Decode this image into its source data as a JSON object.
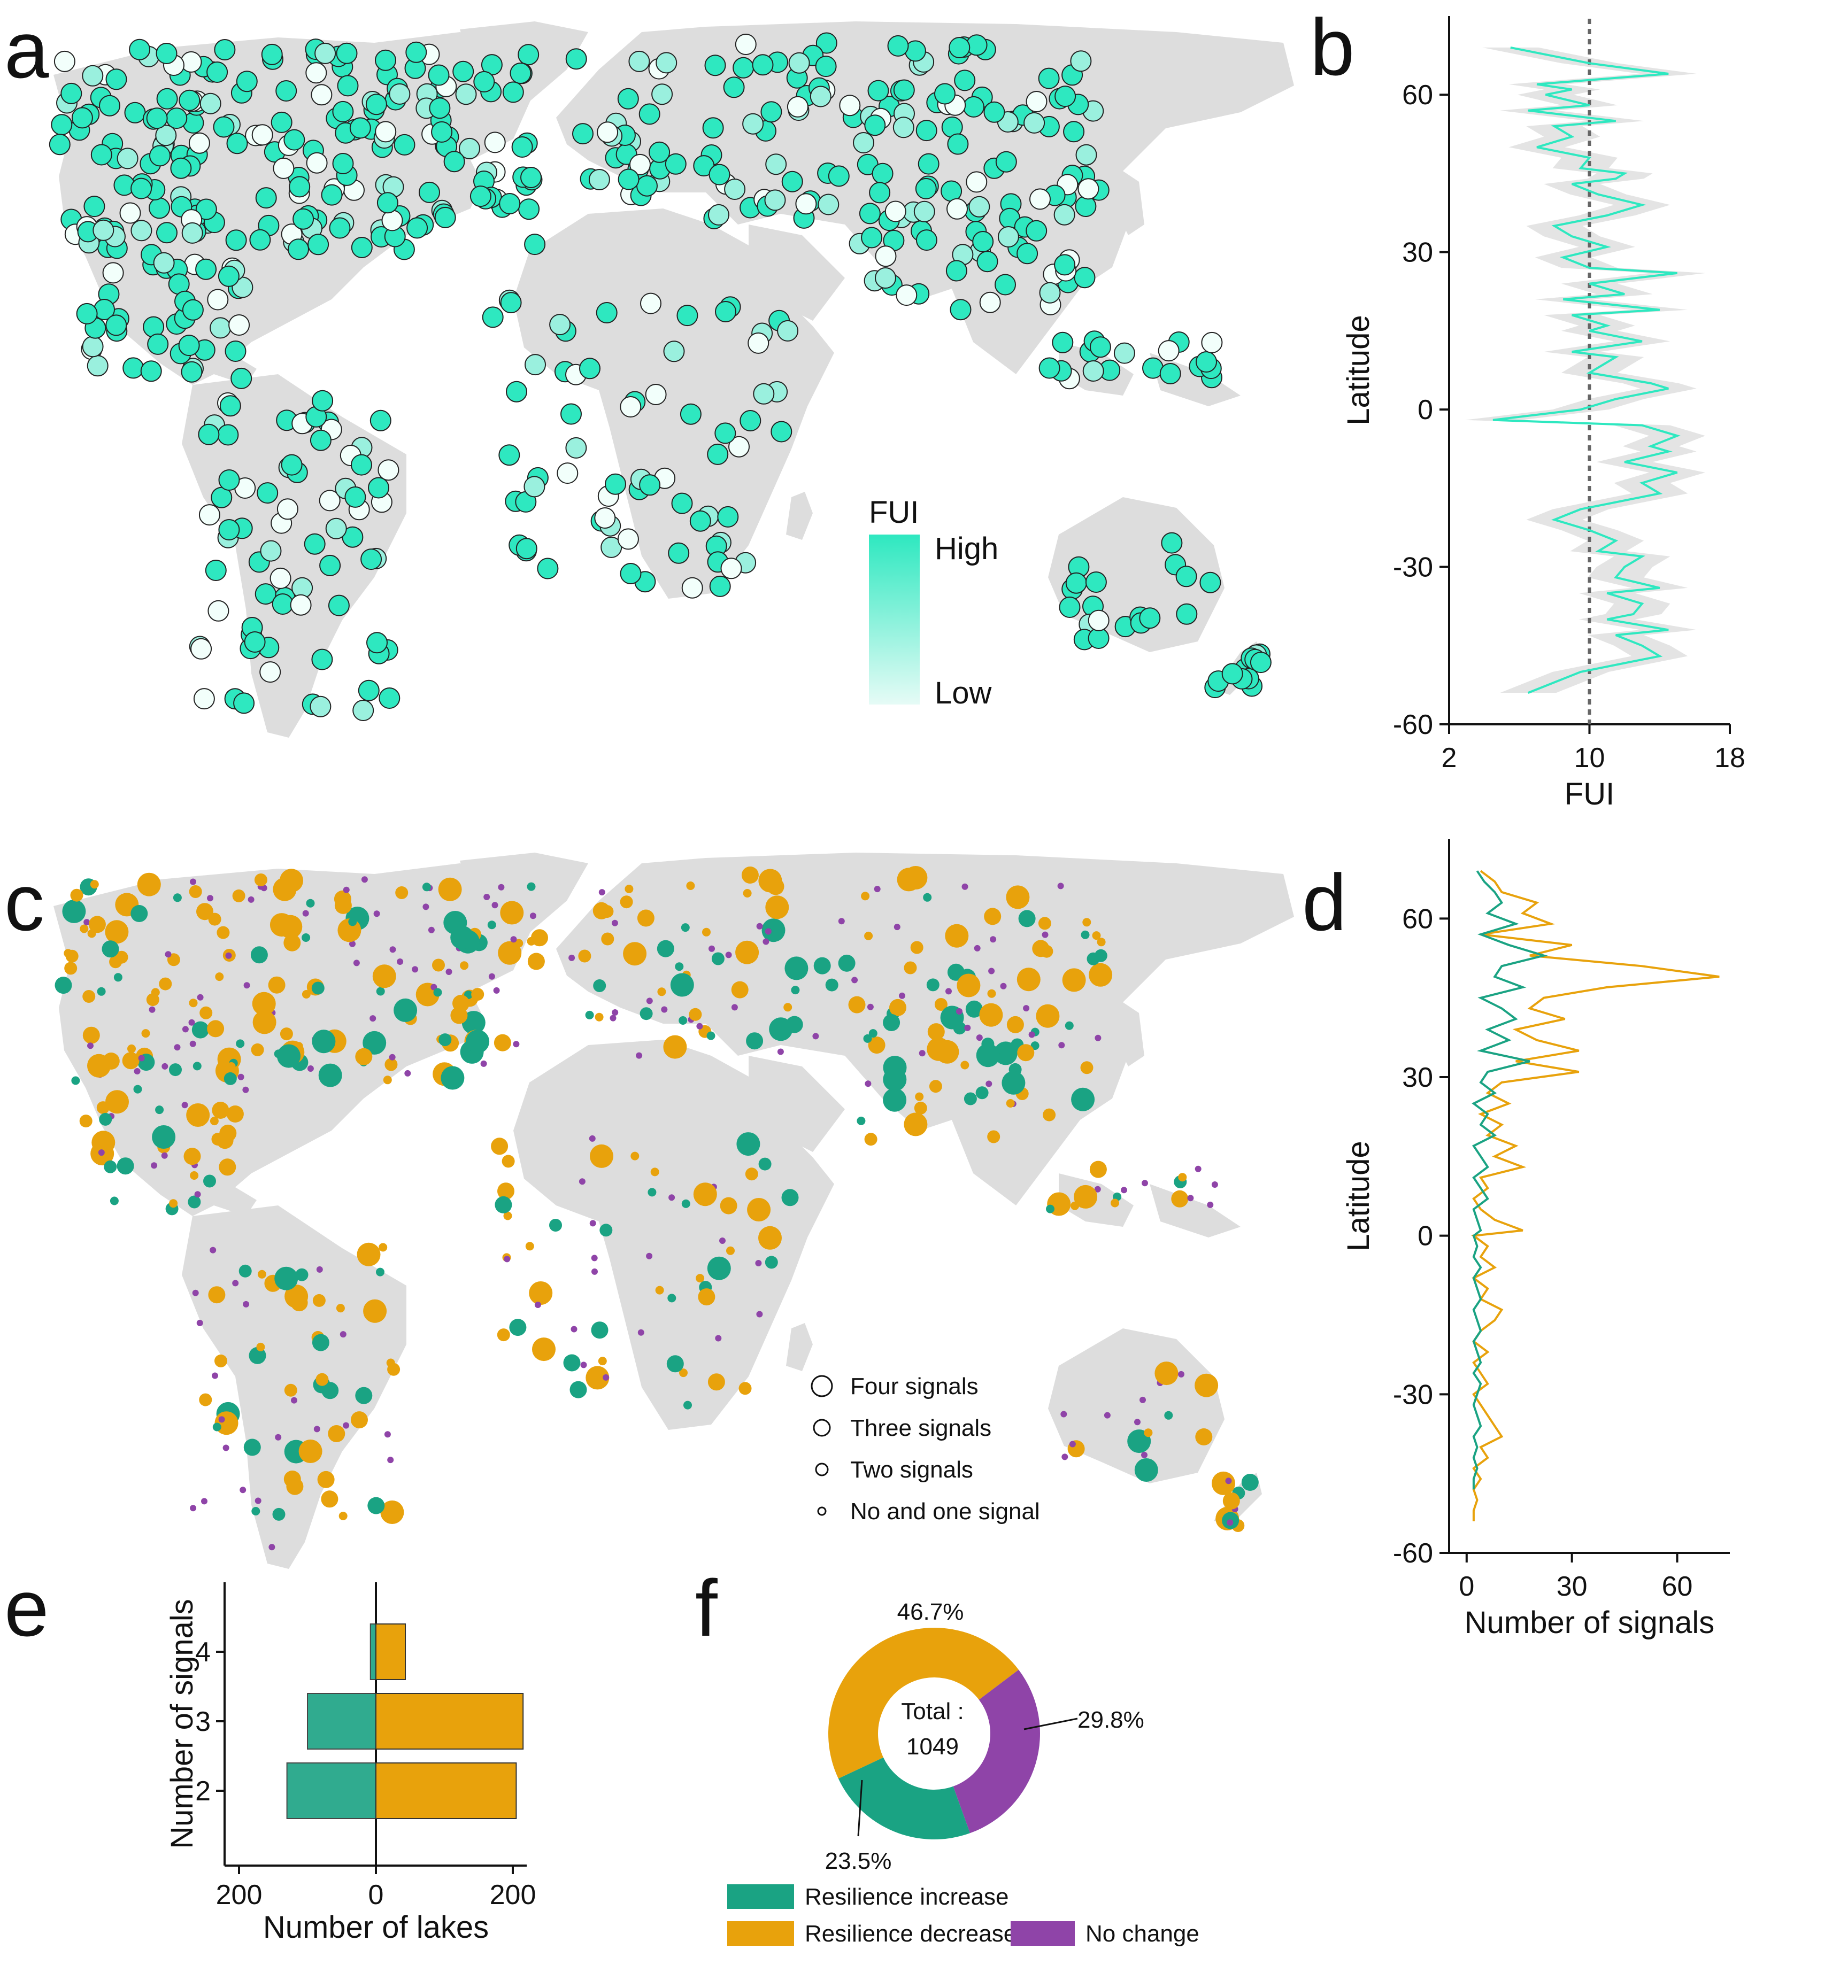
{
  "panels": {
    "a": "a",
    "b": "b",
    "c": "c",
    "d": "d",
    "e": "e",
    "f": "f"
  },
  "colors": {
    "land": "#dddddd",
    "fui_high": "#2ee8c0",
    "fui_low": "#e6fbf6",
    "resilience_increase": "#1aa383",
    "resilience_decrease": "#e8a20c",
    "no_change": "#8f44a8",
    "line_b": "#2ee8c0",
    "band_b": "#d9d9d9"
  },
  "map_a_legend": {
    "title": "FUI",
    "high": "High",
    "low": "Low"
  },
  "map_c_legend": {
    "items": [
      "Four signals",
      "Three signals",
      "Two signals",
      "No and one signal"
    ]
  },
  "chart_data": [
    {
      "panel": "b",
      "type": "line",
      "xlabel": "FUI",
      "ylabel": "Latitude",
      "xlim": [
        2,
        18
      ],
      "ylim": [
        -60,
        75
      ],
      "xticks": [
        "2",
        "10",
        "18"
      ],
      "yticks": [
        "60",
        "30",
        "0",
        "-30",
        "-60"
      ],
      "reference_line_x": 10,
      "series": [
        {
          "lat": [
            69,
            66,
            64,
            62,
            61,
            60,
            58,
            57,
            55,
            54,
            52,
            50,
            48,
            46,
            45,
            44,
            43,
            41,
            39,
            37,
            35,
            33,
            31,
            29,
            27,
            26,
            24,
            22,
            21,
            19,
            18,
            16,
            15,
            13,
            11,
            10,
            8,
            7,
            5,
            4,
            2,
            0,
            -2,
            -3,
            -5,
            -7,
            -8,
            -10,
            -12,
            -14,
            -16,
            -18,
            -19,
            -21,
            -23,
            -25,
            -27,
            -28,
            -30,
            -32,
            -34,
            -35,
            -37,
            -39,
            -40,
            -42,
            -43,
            -45,
            -47,
            -48,
            -50,
            -52,
            -54
          ],
          "fui": [
            5.5,
            10,
            14.5,
            7,
            9,
            7.5,
            10,
            6.5,
            11.5,
            8,
            9,
            7,
            10,
            9.5,
            12,
            11.5,
            9,
            10.5,
            13,
            11,
            8,
            9,
            11,
            8.5,
            10,
            15,
            10,
            12,
            8.5,
            14,
            9,
            11,
            10,
            13,
            9,
            11.5,
            10.5,
            10,
            13.5,
            14.5,
            11.5,
            9.5,
            4.5,
            13,
            15,
            13.5,
            14.5,
            12,
            15,
            13,
            14,
            11,
            9.5,
            8,
            10,
            11.5,
            10.5,
            13,
            12,
            11.5,
            14,
            11,
            13,
            12.5,
            11,
            14.5,
            11.5,
            13,
            14,
            12.5,
            9.5,
            8,
            6.5
          ]
        }
      ]
    },
    {
      "panel": "d",
      "type": "line",
      "xlabel": "Number of signals",
      "ylabel": "Latitude",
      "xlim": [
        -5,
        75
      ],
      "ylim": [
        -60,
        75
      ],
      "xticks": [
        "0",
        "30",
        "60"
      ],
      "yticks": [
        "60",
        "30",
        "0",
        "-30",
        "-60"
      ],
      "series": [
        {
          "name": "Resilience decrease",
          "lat": [
            69,
            67,
            65,
            63,
            61,
            59,
            57,
            55,
            53,
            51,
            49,
            47,
            45,
            43,
            41,
            39,
            37,
            35,
            33,
            31,
            29,
            27,
            25,
            23,
            21,
            19,
            17,
            15,
            13,
            11,
            9,
            7,
            5,
            3,
            1,
            0,
            -2,
            -4,
            -6,
            -8,
            -10,
            -12,
            -14,
            -16,
            -18,
            -20,
            -22,
            -24,
            -26,
            -28,
            -30,
            -32,
            -34,
            -36,
            -38,
            -40,
            -42,
            -44,
            -46,
            -48,
            -50,
            -52,
            -54
          ],
          "values": [
            4,
            8,
            10,
            20,
            16,
            24,
            4,
            30,
            18,
            50,
            72,
            40,
            22,
            18,
            28,
            14,
            20,
            32,
            14,
            32,
            10,
            6,
            12,
            4,
            10,
            6,
            14,
            8,
            16,
            4,
            6,
            2,
            4,
            8,
            16,
            2,
            6,
            4,
            8,
            2,
            6,
            4,
            10,
            8,
            4,
            2,
            6,
            2,
            4,
            6,
            2,
            4,
            6,
            8,
            10,
            4,
            6,
            2,
            4,
            2,
            3,
            2,
            2
          ]
        },
        {
          "name": "Resilience increase",
          "lat": [
            69,
            67,
            65,
            63,
            61,
            59,
            57,
            55,
            53,
            51,
            49,
            47,
            45,
            43,
            41,
            39,
            37,
            35,
            33,
            31,
            29,
            27,
            25,
            23,
            21,
            19,
            17,
            15,
            13,
            11,
            9,
            7,
            5,
            3,
            1,
            0,
            -2,
            -4,
            -6,
            -8,
            -10,
            -12,
            -14,
            -16,
            -18,
            -20,
            -22,
            -24,
            -26,
            -28,
            -30,
            -32,
            -34,
            -36,
            -38,
            -40,
            -42,
            -44,
            -46,
            -48
          ],
          "values": [
            3,
            5,
            8,
            10,
            6,
            14,
            4,
            12,
            22,
            10,
            8,
            16,
            4,
            10,
            14,
            6,
            12,
            4,
            18,
            6,
            4,
            8,
            2,
            6,
            4,
            8,
            2,
            4,
            6,
            2,
            4,
            6,
            2,
            3,
            4,
            2,
            3,
            2,
            4,
            2,
            3,
            4,
            2,
            3,
            4,
            2,
            3,
            4,
            2,
            4,
            3,
            2,
            3,
            4,
            2,
            3,
            2,
            3,
            2,
            2
          ]
        }
      ]
    },
    {
      "panel": "e",
      "type": "bar",
      "orientation": "horizontal",
      "xlabel": "Number of lakes",
      "ylabel": "Number of signals",
      "xticks": [
        "200",
        "0",
        "200"
      ],
      "categories": [
        "4",
        "3",
        "2"
      ],
      "series": [
        {
          "name": "Resilience increase",
          "values": [
            8,
            100,
            130
          ]
        },
        {
          "name": "Resilience decrease",
          "values": [
            43,
            215,
            205
          ]
        }
      ]
    },
    {
      "panel": "f",
      "type": "pie",
      "center_label": "Total :",
      "total": "1049",
      "slices": [
        {
          "name": "Resilience decrease",
          "value": 46.7,
          "label": "46.7%"
        },
        {
          "name": "No change",
          "value": 29.8,
          "label": "29.8%"
        },
        {
          "name": "Resilience increase",
          "value": 23.5,
          "label": "23.5%"
        }
      ],
      "legend": [
        "Resilience increase",
        "Resilience decrease",
        "No change"
      ]
    }
  ]
}
